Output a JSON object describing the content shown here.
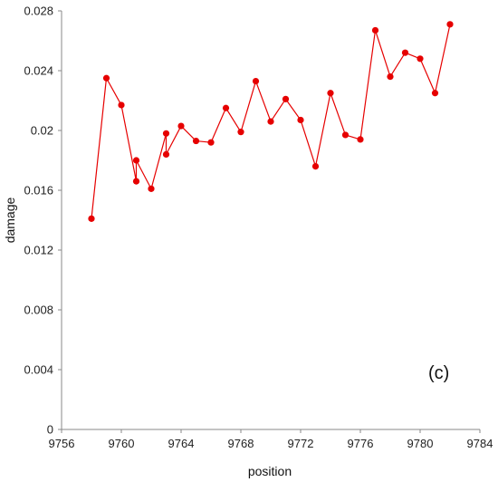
{
  "chart_data": {
    "type": "line",
    "title": "",
    "xlabel": "position",
    "ylabel": "damage",
    "xlim": [
      9756,
      9784
    ],
    "ylim": [
      0,
      0.028
    ],
    "xticks": [
      9756,
      9760,
      9764,
      9768,
      9772,
      9776,
      9780,
      9784
    ],
    "xtick_labels": [
      "9756",
      "9760",
      "9764",
      "9768",
      "9772",
      "9776",
      "9780",
      "9784"
    ],
    "yticks": [
      0,
      0.004,
      0.008,
      0.012,
      0.016,
      0.02,
      0.024,
      0.028
    ],
    "ytick_labels": [
      "0",
      "0.004",
      "0.008",
      "0.012",
      "0.016",
      "0.02",
      "0.024",
      "0.028"
    ],
    "grid": false,
    "annotation": "(c)",
    "series": [
      {
        "color": "#e60000",
        "marker": "circle",
        "x": [
          9758,
          9759,
          9760,
          9761,
          9761,
          9762,
          9763,
          9763,
          9764,
          9765,
          9766,
          9767,
          9768,
          9769,
          9770,
          9771,
          9772,
          9773,
          9774,
          9775,
          9776,
          9777,
          9778,
          9779,
          9780,
          9781,
          9782
        ],
        "y": [
          0.0141,
          0.0235,
          0.0217,
          0.0166,
          0.018,
          0.0161,
          0.0198,
          0.0184,
          0.0203,
          0.0193,
          0.0192,
          0.0215,
          0.0199,
          0.0233,
          0.0206,
          0.0221,
          0.0207,
          0.0176,
          0.0225,
          0.0197,
          0.0194,
          0.0267,
          0.0236,
          0.0252,
          0.0248,
          0.0225,
          0.0271
        ]
      }
    ]
  }
}
